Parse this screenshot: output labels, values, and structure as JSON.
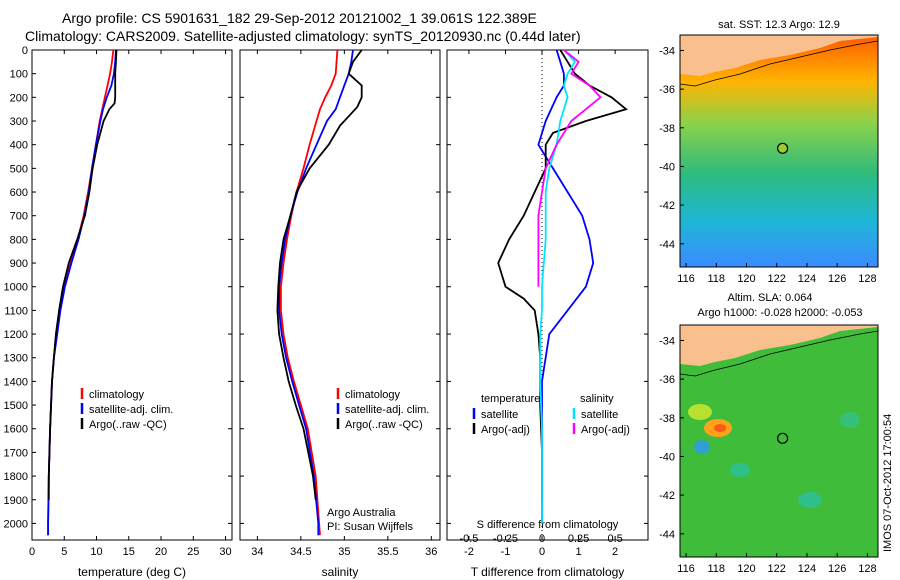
{
  "header": {
    "line1": "Argo profile: CS 5901631_182 29-Sep-2012 20121002_1 39.061S 122.389E",
    "line2": "Climatology: CARS2009. Satellite-adjusted climatology: synTS_20120930.nc (0.44d later)"
  },
  "side_label": "IMOS 07-Oct-2012 17:00:54",
  "colors": {
    "climatology": "#ff0000",
    "satellite": "#0000ff",
    "argo": "#000000",
    "sal_satellite": "#00e5ff",
    "sal_argo": "#ff00ff",
    "land": "#f9c08e"
  },
  "chart_data": [
    {
      "id": "temperature",
      "type": "line",
      "xlabel": "temperature (deg C)",
      "ylabel": "",
      "xlim": [
        0,
        31
      ],
      "ylim": [
        2070,
        0
      ],
      "x_ticks": [
        0,
        5,
        10,
        15,
        20,
        25,
        30
      ],
      "y_ticks": [
        0,
        100,
        200,
        300,
        400,
        500,
        600,
        700,
        800,
        900,
        1000,
        1100,
        1200,
        1300,
        1400,
        1500,
        1600,
        1700,
        1800,
        1900,
        2000
      ],
      "legend": [
        "climatology",
        "satellite-adj. clim.",
        "Argo(..raw -QC)"
      ],
      "series": [
        {
          "name": "climatology",
          "color": "#ff0000",
          "depth": [
            0,
            50,
            100,
            150,
            200,
            250,
            300,
            400,
            500,
            600,
            700,
            800,
            900,
            1000,
            1100,
            1200,
            1300,
            1400,
            1600,
            1800,
            2000,
            2050
          ],
          "values": [
            12.6,
            12.4,
            12.1,
            11.7,
            11.3,
            10.9,
            10.5,
            9.9,
            9.3,
            8.7,
            8.0,
            7.1,
            6.0,
            5.0,
            4.3,
            3.8,
            3.4,
            3.1,
            2.8,
            2.6,
            2.5,
            2.5
          ]
        },
        {
          "name": "satellite-adj. clim.",
          "color": "#0000ff",
          "depth": [
            0,
            50,
            100,
            150,
            200,
            250,
            300,
            400,
            500,
            600,
            700,
            800,
            900,
            1000,
            1100,
            1200,
            1300,
            1400,
            1600,
            1800,
            2000,
            2050
          ],
          "values": [
            13.0,
            12.9,
            12.7,
            12.3,
            11.6,
            11.0,
            10.6,
            9.9,
            9.3,
            8.8,
            8.1,
            7.2,
            6.1,
            5.1,
            4.4,
            3.9,
            3.4,
            3.1,
            2.8,
            2.6,
            2.5,
            2.5
          ]
        },
        {
          "name": "Argo(..raw -QC)",
          "color": "#000000",
          "depth": [
            0,
            50,
            100,
            150,
            200,
            225,
            250,
            300,
            400,
            500,
            600,
            700,
            800,
            900,
            1000,
            1100,
            1200,
            1300,
            1400,
            1600,
            1800,
            1900
          ],
          "values": [
            13.1,
            13.0,
            12.9,
            12.9,
            12.9,
            12.8,
            12.0,
            11.1,
            10.1,
            9.4,
            8.9,
            8.2,
            7.0,
            5.7,
            4.8,
            4.2,
            3.7,
            3.4,
            3.1,
            2.8,
            2.6,
            2.6
          ]
        }
      ]
    },
    {
      "id": "salinity",
      "type": "line",
      "xlabel": "salinity",
      "ylabel": "",
      "xlim": [
        33.8,
        36.1
      ],
      "ylim": [
        2070,
        0
      ],
      "x_ticks": [
        34,
        34.5,
        35,
        35.5,
        36
      ],
      "legend": [
        "climatology",
        "satellite-adj. clim.",
        "Argo(..raw -QC)"
      ],
      "annotation": [
        "Argo Australia",
        "PI: Susan Wijffels"
      ],
      "series": [
        {
          "name": "climatology",
          "color": "#ff0000",
          "depth": [
            0,
            100,
            150,
            200,
            250,
            300,
            400,
            500,
            600,
            700,
            800,
            900,
            1000,
            1100,
            1200,
            1300,
            1400,
            1500,
            1600,
            1800,
            2000,
            2050
          ],
          "values": [
            34.92,
            34.9,
            34.85,
            34.78,
            34.72,
            34.68,
            34.6,
            34.53,
            34.45,
            34.39,
            34.34,
            34.3,
            34.27,
            34.27,
            34.3,
            34.35,
            34.42,
            34.5,
            34.58,
            34.67,
            34.71,
            34.72
          ]
        },
        {
          "name": "satellite-adj. clim.",
          "color": "#0000ff",
          "depth": [
            0,
            50,
            100,
            150,
            200,
            250,
            300,
            400,
            500,
            600,
            700,
            800,
            900,
            1000,
            1100,
            1200,
            1300,
            1400,
            1500,
            1600,
            1800,
            2000,
            2050
          ],
          "values": [
            35.1,
            35.08,
            35.05,
            35.0,
            34.95,
            34.9,
            34.8,
            34.68,
            34.56,
            34.46,
            34.38,
            34.32,
            34.28,
            34.25,
            34.25,
            34.28,
            34.33,
            34.4,
            34.48,
            34.56,
            34.65,
            34.7,
            34.7
          ]
        },
        {
          "name": "Argo(..raw -QC)",
          "color": "#000000",
          "depth": [
            0,
            50,
            100,
            150,
            200,
            240,
            280,
            320,
            400,
            500,
            600,
            700,
            800,
            900,
            1000,
            1100,
            1200,
            1300,
            1400,
            1500,
            1600,
            1800,
            1900
          ],
          "values": [
            35.2,
            35.1,
            35.05,
            35.2,
            35.2,
            35.15,
            35.05,
            34.95,
            34.82,
            34.6,
            34.45,
            34.38,
            34.3,
            34.26,
            34.24,
            34.23,
            34.25,
            34.3,
            34.36,
            34.44,
            34.53,
            34.64,
            34.67
          ]
        }
      ]
    },
    {
      "id": "differences",
      "type": "line",
      "xlabel": "T difference from climatology",
      "ylabel": "",
      "xlim": [
        -2.6,
        2.9
      ],
      "ylim": [
        2070,
        0
      ],
      "x_ticks": [
        -2,
        -1,
        0,
        1,
        2
      ],
      "top_label": "S difference from climatology",
      "top_ticks": [
        {
          "label": "-0.5",
          "x": -2
        },
        {
          "label": "-0.25",
          "x": -1
        },
        {
          "label": "0",
          "x": 0
        },
        {
          "label": "0.25",
          "x": 1
        },
        {
          "label": "0.5",
          "x": 2
        }
      ],
      "legend_left_title": "temperature",
      "legend_right_title": "salinity",
      "legend_left": [
        "satellite",
        "Argo(-adj)"
      ],
      "legend_right": [
        "satellite",
        "Argo(-adj)"
      ],
      "series": [
        {
          "name": "T satellite",
          "color": "#0000ff",
          "depth": [
            0,
            50,
            100,
            150,
            200,
            300,
            400,
            500,
            600,
            700,
            800,
            900,
            1000,
            1100,
            1200,
            1400,
            1600,
            1800,
            2000
          ],
          "values": [
            0.4,
            0.5,
            0.6,
            0.6,
            0.4,
            0.1,
            -0.1,
            0.3,
            0.7,
            1.1,
            1.3,
            1.4,
            1.2,
            0.7,
            0.2,
            0.0,
            0.0,
            0.0,
            0.0
          ]
        },
        {
          "name": "T Argo(-adj)",
          "color": "#000000",
          "depth": [
            0,
            50,
            100,
            150,
            200,
            250,
            300,
            350,
            400,
            500,
            600,
            700,
            800,
            900,
            1000,
            1050,
            1100,
            1200,
            1300,
            1500,
            1700,
            1900
          ],
          "values": [
            0.5,
            0.7,
            0.9,
            1.3,
            1.9,
            2.3,
            1.2,
            0.3,
            0.1,
            0.1,
            -0.2,
            -0.5,
            -0.9,
            -1.2,
            -1.0,
            -0.5,
            -0.2,
            -0.1,
            -0.05,
            -0.05,
            0.0,
            0.0
          ]
        },
        {
          "name": "S satellite",
          "color": "#00e5ff",
          "depth": [
            0,
            50,
            100,
            150,
            200,
            250,
            300,
            400,
            500,
            600,
            700,
            800,
            900,
            1000,
            1100,
            1200,
            1400,
            1600,
            1800,
            2000
          ],
          "values": [
            0.6,
            0.9,
            0.7,
            0.6,
            0.7,
            0.6,
            0.5,
            0.4,
            0.2,
            0.1,
            0.1,
            0.1,
            0.05,
            0.0,
            0.0,
            -0.05,
            -0.05,
            0.0,
            0.0,
            0.0
          ]
        },
        {
          "name": "S Argo(-adj)",
          "color": "#ff00ff",
          "depth": [
            0,
            50,
            100,
            150,
            200,
            250,
            300,
            400,
            500,
            600,
            700,
            800,
            900,
            1000
          ],
          "values": [
            0.6,
            1.0,
            0.8,
            1.3,
            1.6,
            1.2,
            0.8,
            0.4,
            0.1,
            0.0,
            -0.1,
            -0.1,
            -0.1,
            -0.1
          ]
        }
      ]
    },
    {
      "id": "sst_map",
      "type": "heatmap",
      "title": "sat. SST: 12.3 Argo: 12.9",
      "x_ticks": [
        116,
        118,
        120,
        122,
        124,
        126,
        128
      ],
      "y_ticks": [
        -34,
        -36,
        -38,
        -40,
        -42,
        -44
      ],
      "xlim": [
        115.6,
        128.7
      ],
      "ylim": [
        -45.2,
        -33.2
      ],
      "marker": {
        "lon": 122.389,
        "lat": -39.061
      }
    },
    {
      "id": "sla_map",
      "type": "heatmap",
      "title": "Altim. SLA: 0.064",
      "subtitle": "Argo h1000: -0.028 h2000: -0.053",
      "x_ticks": [
        116,
        118,
        120,
        122,
        124,
        126,
        128
      ],
      "y_ticks": [
        -34,
        -36,
        -38,
        -40,
        -42,
        -44
      ],
      "xlim": [
        115.6,
        128.7
      ],
      "ylim": [
        -45.2,
        -33.2
      ],
      "marker": {
        "lon": 122.389,
        "lat": -39.061
      }
    }
  ]
}
